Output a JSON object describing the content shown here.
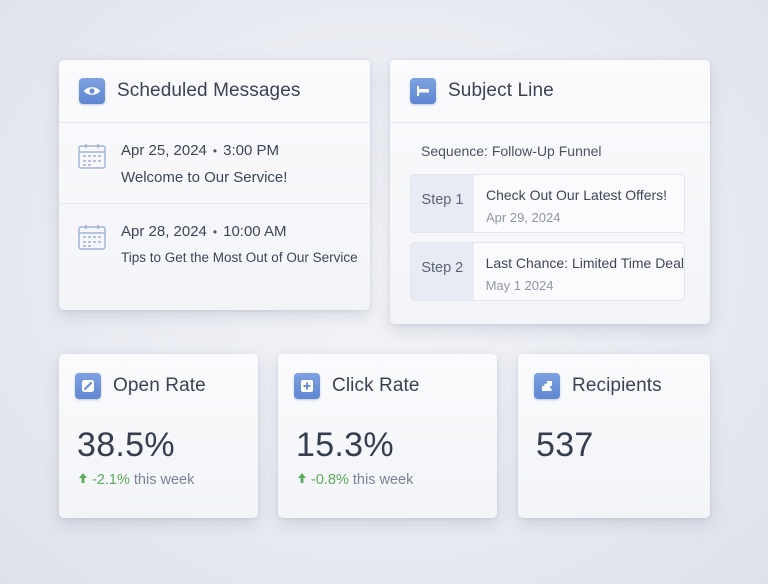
{
  "scheduled": {
    "title": "Scheduled Messages",
    "icon": "eye-icon",
    "messages": [
      {
        "date": "Apr 25, 2024",
        "separator": "•",
        "time": "3:00 PM",
        "subject": "Welcome to Our Service!"
      },
      {
        "date": "Apr 28, 2024",
        "separator": "•",
        "time": "10:00 AM",
        "subject": "Tips to Get the Most Out of Our Service"
      }
    ]
  },
  "subject_line": {
    "title": "Subject Line",
    "icon": "flag-icon",
    "sequence": "Sequence: Follow-Up Funnel",
    "steps": [
      {
        "label": "Step 1",
        "subject": "Check Out Our Latest Offers!",
        "date": "Apr 29, 2024"
      },
      {
        "label": "Step 2",
        "subject": "Last Chance: Limited Time Deal",
        "date": "May 1 2024"
      }
    ]
  },
  "metrics": {
    "open_rate": {
      "title": "Open Rate",
      "value": "38.5%",
      "change": "-2.1%",
      "change_suffix": "this week",
      "icon": "gauge-icon"
    },
    "click_rate": {
      "title": "Click Rate",
      "value": "15.3%",
      "change": "-0.8%",
      "change_suffix": "this week",
      "icon": "plus-box-icon"
    },
    "recipients": {
      "title": "Recipients",
      "value": "537",
      "icon": "puzzle-icon"
    }
  },
  "colors": {
    "accent": "#6b90d8",
    "positive": "#5cab5a",
    "text": "#3a4353"
  }
}
